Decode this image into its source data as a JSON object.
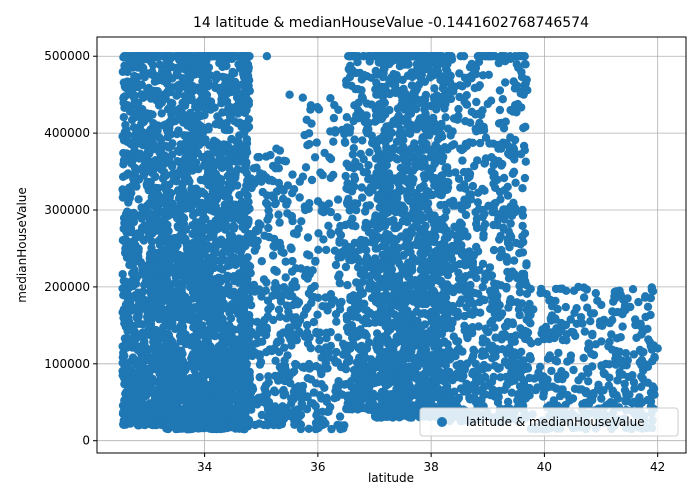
{
  "chart_data": {
    "type": "scatter",
    "title": "14 latitude & medianHouseValue -0.1441602768746574",
    "xlabel": "latitude",
    "ylabel": "medianHouseValue",
    "xlim": [
      32.1,
      42.5
    ],
    "ylim": [
      -16000,
      525000
    ],
    "xticks": [
      34,
      36,
      38,
      40,
      42
    ],
    "yticks": [
      0,
      100000,
      200000,
      300000,
      400000,
      500000
    ],
    "grid": true,
    "legend_position": "lower-right",
    "series": [
      {
        "name": "latitude & medianHouseValue",
        "color": "#1f77b4",
        "clusters": [
          {
            "lat": [
              32.55,
              33.3
            ],
            "value": [
              20000,
              500000
            ],
            "points": 950
          },
          {
            "lat": [
              33.3,
              34.8
            ],
            "value": [
              15000,
              500000
            ],
            "points": 2100
          },
          {
            "lat": [
              34.8,
              35.7
            ],
            "value": [
              20000,
              380000
            ],
            "points": 300
          },
          {
            "lat": [
              35.7,
              36.5
            ],
            "value": [
              15000,
              450000
            ],
            "points": 220
          },
          {
            "lat": [
              36.5,
              37.0
            ],
            "value": [
              40000,
              500000
            ],
            "points": 320
          },
          {
            "lat": [
              37.0,
              38.3
            ],
            "value": [
              30000,
              500000
            ],
            "points": 1600
          },
          {
            "lat": [
              38.3,
              39.7
            ],
            "value": [
              25000,
              500000
            ],
            "points": 700
          },
          {
            "lat": [
              39.7,
              41.95
            ],
            "value": [
              15000,
              200000
            ],
            "points": 400
          }
        ],
        "highlights": [
          [
            38.0,
            500000
          ],
          [
            37.8,
            500000
          ],
          [
            37.5,
            500000
          ],
          [
            38.9,
            500000
          ],
          [
            35.1,
            500000
          ],
          [
            36.8,
            500000
          ],
          [
            33.0,
            500000
          ],
          [
            32.9,
            500000
          ],
          [
            38.5,
            447000
          ],
          [
            39.0,
            438000
          ],
          [
            36.5,
            468000
          ],
          [
            35.5,
            450000
          ],
          [
            41.7,
            152000
          ],
          [
            40.6,
            200000
          ],
          [
            41.5,
            60000
          ],
          [
            42.0,
            120000
          ],
          [
            36.4,
            15000
          ],
          [
            34.2,
            16000
          ],
          [
            40.3,
            36000
          ]
        ]
      }
    ]
  }
}
